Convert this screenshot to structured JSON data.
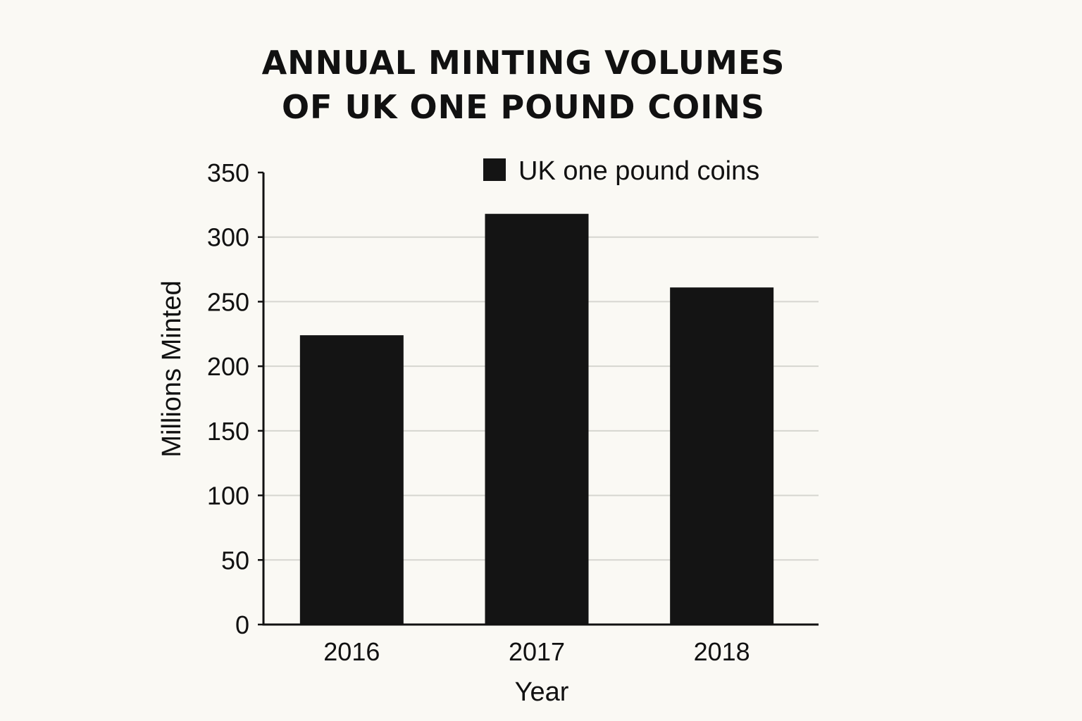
{
  "chart_data": {
    "type": "bar",
    "title_lines": [
      "ANNUAL MINTING VOLUMES",
      "OF UK ONE POUND COINS"
    ],
    "xlabel": "Year",
    "ylabel": "Millions Minted",
    "categories": [
      "2016",
      "2017",
      "2018"
    ],
    "series": [
      {
        "name": "UK one pound coins",
        "values": [
          224,
          318,
          261
        ]
      }
    ],
    "ylim": [
      0,
      350
    ],
    "yticks": [
      0,
      50,
      100,
      150,
      200,
      250,
      300,
      350
    ],
    "grid": true,
    "legend_position": "top-right",
    "bar_color": "#141414",
    "grid_color": "#d6d6d0"
  }
}
